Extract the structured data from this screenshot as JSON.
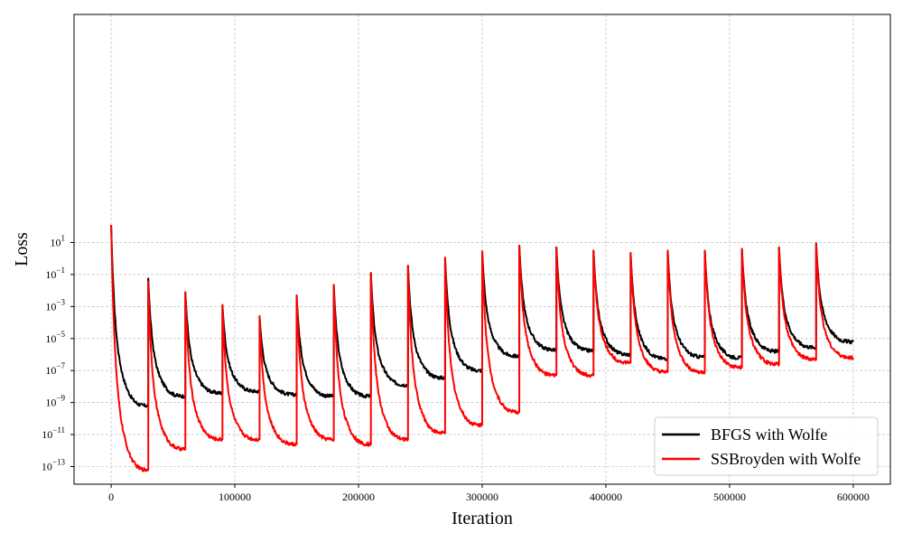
{
  "chart_data": {
    "type": "line",
    "title": "",
    "xlabel": "Iteration",
    "ylabel": "Loss",
    "xlim": [
      -30000,
      630000
    ],
    "ylim_log10": [
      -14.1,
      15.25
    ],
    "y_scale": "log",
    "grid": true,
    "legend_position": "bottom-right",
    "x_ticks": [
      0,
      100000,
      200000,
      300000,
      400000,
      500000,
      600000
    ],
    "x_tick_labels": [
      "0",
      "100000",
      "200000",
      "300000",
      "400000",
      "500000",
      "600000"
    ],
    "y_ticks_log10": [
      -13,
      -11,
      -9,
      -7,
      -5,
      -3,
      -1,
      1
    ],
    "y_tick_labels": [
      "10^-13",
      "10^-11",
      "10^-9",
      "10^-7",
      "10^-5",
      "10^-3",
      "10^-1",
      "10^1"
    ],
    "segment_length": 30000,
    "series": [
      {
        "name": "BFGS with Wolfe",
        "color": "#000000",
        "segments_log10": [
          {
            "start": 2.1,
            "end": -9.2
          },
          {
            "start": -1.25,
            "end": -8.6
          },
          {
            "start": -2.1,
            "end": -8.4
          },
          {
            "start": -2.9,
            "end": -8.3
          },
          {
            "start": -3.6,
            "end": -8.5
          },
          {
            "start": -2.3,
            "end": -8.6
          },
          {
            "start": -1.65,
            "end": -8.6
          },
          {
            "start": -0.9,
            "end": -7.9
          },
          {
            "start": -0.45,
            "end": -7.45
          },
          {
            "start": 0.05,
            "end": -7.0
          },
          {
            "start": 0.45,
            "end": -6.1
          },
          {
            "start": 0.8,
            "end": -5.7
          },
          {
            "start": 0.7,
            "end": -5.75
          },
          {
            "start": 0.5,
            "end": -6.0
          },
          {
            "start": 0.35,
            "end": -6.25
          },
          {
            "start": 0.5,
            "end": -6.15
          },
          {
            "start": 0.5,
            "end": -6.2
          },
          {
            "start": 0.6,
            "end": -5.8
          },
          {
            "start": 0.7,
            "end": -5.55
          },
          {
            "start": 0.95,
            "end": -5.2
          }
        ]
      },
      {
        "name": "SSBroyden with Wolfe",
        "color": "#ff0000",
        "segments_log10": [
          {
            "start": 2.1,
            "end": -13.2
          },
          {
            "start": -1.45,
            "end": -11.9
          },
          {
            "start": -2.1,
            "end": -11.3
          },
          {
            "start": -2.9,
            "end": -11.3
          },
          {
            "start": -3.6,
            "end": -11.6
          },
          {
            "start": -2.3,
            "end": -11.3
          },
          {
            "start": -1.65,
            "end": -11.6
          },
          {
            "start": -0.9,
            "end": -11.3
          },
          {
            "start": -0.45,
            "end": -10.9
          },
          {
            "start": 0.05,
            "end": -10.4
          },
          {
            "start": 0.45,
            "end": -9.6
          },
          {
            "start": 0.8,
            "end": -7.3
          },
          {
            "start": 0.7,
            "end": -7.3
          },
          {
            "start": 0.5,
            "end": -6.5
          },
          {
            "start": 0.35,
            "end": -7.1
          },
          {
            "start": 0.5,
            "end": -7.1
          },
          {
            "start": 0.5,
            "end": -6.8
          },
          {
            "start": 0.6,
            "end": -6.6
          },
          {
            "start": 0.7,
            "end": -6.3
          },
          {
            "start": 0.95,
            "end": -6.2
          }
        ]
      }
    ]
  }
}
